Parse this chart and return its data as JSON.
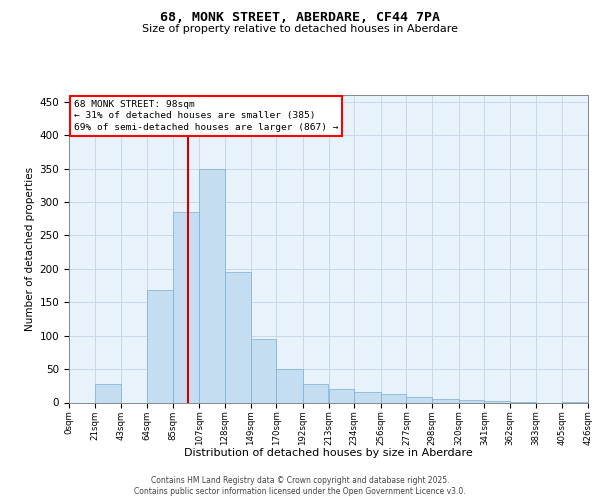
{
  "title1": "68, MONK STREET, ABERDARE, CF44 7PA",
  "title2": "Size of property relative to detached houses in Aberdare",
  "xlabel": "Distribution of detached houses by size in Aberdare",
  "ylabel": "Number of detached properties",
  "annotation_title": "68 MONK STREET: 98sqm",
  "annotation_line1": "← 31% of detached houses are smaller (385)",
  "annotation_line2": "69% of semi-detached houses are larger (867) →",
  "property_size": 98,
  "bin_edges": [
    0,
    21,
    43,
    64,
    85,
    107,
    128,
    149,
    170,
    192,
    213,
    234,
    256,
    277,
    298,
    320,
    341,
    362,
    383,
    405,
    426
  ],
  "bin_labels": [
    "0sqm",
    "21sqm",
    "43sqm",
    "64sqm",
    "85sqm",
    "107sqm",
    "128sqm",
    "149sqm",
    "170sqm",
    "192sqm",
    "213sqm",
    "234sqm",
    "256sqm",
    "277sqm",
    "298sqm",
    "320sqm",
    "341sqm",
    "362sqm",
    "383sqm",
    "405sqm",
    "426sqm"
  ],
  "counts": [
    0,
    27,
    0,
    168,
    285,
    350,
    195,
    95,
    50,
    28,
    20,
    15,
    12,
    8,
    5,
    4,
    2,
    1,
    0,
    1
  ],
  "bar_color": "#c5ddf0",
  "bar_edgecolor": "#7aaed4",
  "vline_color": "#cc0000",
  "vline_x": 98,
  "ylim": [
    0,
    460
  ],
  "yticks": [
    0,
    50,
    100,
    150,
    200,
    250,
    300,
    350,
    400,
    450
  ],
  "grid_color": "#c8d8e8",
  "background_color": "#e8f2fa",
  "footer1": "Contains HM Land Registry data © Crown copyright and database right 2025.",
  "footer2": "Contains public sector information licensed under the Open Government Licence v3.0."
}
